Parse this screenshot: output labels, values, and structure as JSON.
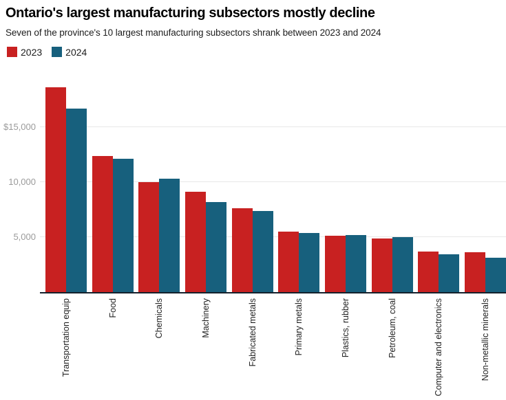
{
  "header": {
    "title": "Ontario's largest manufacturing subsectors mostly decline",
    "subtitle": "Seven of the province's 10 largest manufacturing subsectors shrank between 2023 and 2024"
  },
  "chart_data": {
    "type": "bar",
    "title": "Ontario's largest manufacturing subsectors mostly decline",
    "subtitle": "Seven of the province's 10 largest manufacturing subsectors shrank between 2023 and 2024",
    "categories": [
      "Transportation equip",
      "Food",
      "Chemicals",
      "Machinery",
      "Fabricated metals",
      "Primary metals",
      "Plastics, rubber",
      "Petroleum, coal",
      "Computer and electronics",
      "Non-metallic minerals"
    ],
    "series": [
      {
        "name": "2023",
        "color": "#c82121",
        "values": [
          18650,
          12400,
          10000,
          9100,
          7650,
          5500,
          5100,
          4850,
          3700,
          3650
        ]
      },
      {
        "name": "2024",
        "color": "#17607d",
        "values": [
          16700,
          12150,
          10300,
          8200,
          7350,
          5350,
          5200,
          5000,
          3450,
          3100
        ]
      }
    ],
    "yticks": [
      {
        "value": 5000,
        "label": "5,000"
      },
      {
        "value": 10000,
        "label": "10,000"
      },
      {
        "value": 15000,
        "label": "$15,000"
      }
    ],
    "ylim": [
      0,
      19375
    ],
    "xlabel": "",
    "ylabel": "",
    "grid": "horizontal",
    "legend_position": "top-left",
    "colors": {
      "grid": "#e7e7e7",
      "baseline": "#14202b",
      "ytick_text": "#9a9a9a",
      "xtick_text": "#222222"
    }
  }
}
